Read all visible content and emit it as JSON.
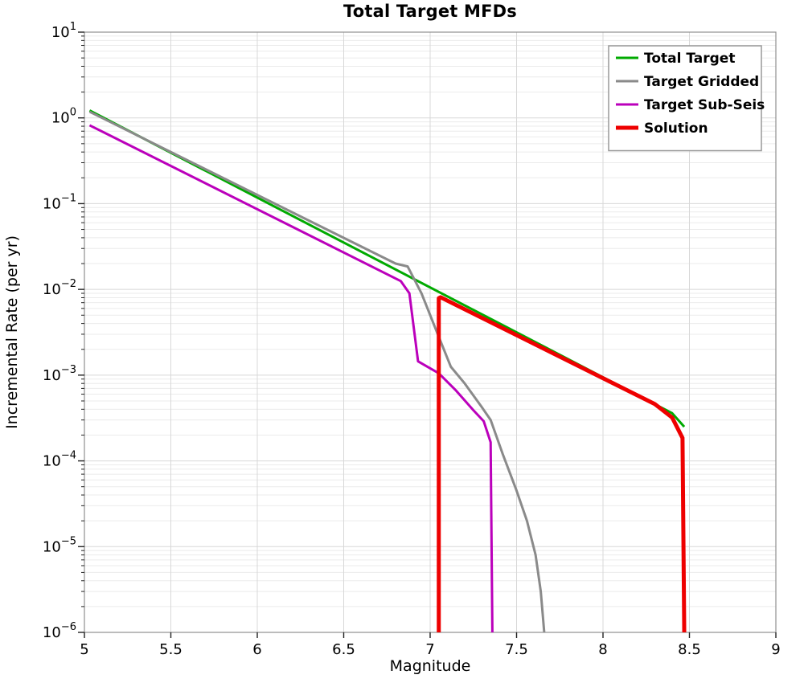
{
  "chart_data": {
    "type": "line",
    "title": "Total Target MFDs",
    "xlabel": "Magnitude",
    "ylabel": "Incremental Rate (per yr)",
    "xlim": [
      5,
      9
    ],
    "x_ticks": [
      5,
      5.5,
      6,
      6.5,
      7,
      7.5,
      8,
      8.5,
      9
    ],
    "x_tick_labels": [
      "5",
      "5.5",
      "6",
      "6.5",
      "7",
      "7.5",
      "8",
      "8.5",
      "9"
    ],
    "yscale": "log",
    "ylim": [
      1e-06,
      10
    ],
    "y_tick_exponents": [
      1,
      0,
      -1,
      -2,
      -3,
      -4,
      -5,
      -6
    ],
    "grid": true,
    "legend_position": "top-right",
    "series": [
      {
        "name": "Total Target",
        "color": "#00aa00",
        "width": 3,
        "points": [
          [
            5.03,
            1.22
          ],
          [
            8.4,
            0.00036
          ],
          [
            8.47,
            0.00025
          ]
        ]
      },
      {
        "name": "Target Gridded",
        "color": "#8a8a8a",
        "width": 3,
        "points": [
          [
            5.03,
            1.18
          ],
          [
            6.8,
            0.02
          ],
          [
            6.87,
            0.0185
          ],
          [
            6.95,
            0.009
          ],
          [
            7.05,
            0.0028
          ],
          [
            7.12,
            0.00125
          ],
          [
            7.2,
            0.0008
          ],
          [
            7.3,
            0.00042
          ],
          [
            7.35,
            0.0003
          ],
          [
            7.42,
            0.00012
          ],
          [
            7.5,
            4.5e-05
          ],
          [
            7.56,
            2e-05
          ],
          [
            7.61,
            8e-06
          ],
          [
            7.64,
            3e-06
          ],
          [
            7.66,
            1e-06
          ]
        ]
      },
      {
        "name": "Target Sub-Seis",
        "color": "#bb00bb",
        "width": 3,
        "points": [
          [
            5.03,
            0.82
          ],
          [
            6.83,
            0.0125
          ],
          [
            6.88,
            0.009
          ],
          [
            6.93,
            0.00145
          ],
          [
            7.05,
            0.00105
          ],
          [
            7.15,
            0.00066
          ],
          [
            7.25,
            0.00039
          ],
          [
            7.31,
            0.00029
          ],
          [
            7.35,
            0.000165
          ],
          [
            7.36,
            1e-06
          ]
        ]
      },
      {
        "name": "Solution",
        "color": "#ee0000",
        "width": 5,
        "points": [
          [
            7.05,
            1e-06
          ],
          [
            7.05,
            0.0079
          ],
          [
            7.06,
            0.0081
          ],
          [
            8.3,
            0.00046
          ],
          [
            8.4,
            0.00032
          ],
          [
            8.46,
            0.000185
          ],
          [
            8.47,
            1e-06
          ]
        ]
      }
    ]
  }
}
